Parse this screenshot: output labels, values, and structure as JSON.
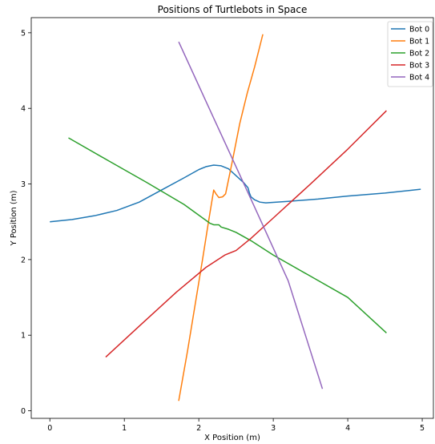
{
  "chart_data": {
    "type": "line",
    "title": "Positions of Turtlebots in Space",
    "xlabel": "X Position (m)",
    "ylabel": "Y Position (m)",
    "xlim": [
      -0.25,
      5.15
    ],
    "ylim": [
      -0.1,
      5.2
    ],
    "xticks": [
      0,
      1,
      2,
      3,
      4,
      5
    ],
    "yticks": [
      0,
      1,
      2,
      3,
      4,
      5
    ],
    "grid": false,
    "legend_position": "top-right",
    "series": [
      {
        "name": "Bot 0",
        "color": "#1f77b4",
        "points": [
          [
            0.0,
            2.5
          ],
          [
            0.3,
            2.53
          ],
          [
            0.6,
            2.58
          ],
          [
            0.9,
            2.65
          ],
          [
            1.2,
            2.76
          ],
          [
            1.5,
            2.92
          ],
          [
            1.8,
            3.08
          ],
          [
            2.0,
            3.19
          ],
          [
            2.1,
            3.23
          ],
          [
            2.2,
            3.25
          ],
          [
            2.3,
            3.24
          ],
          [
            2.4,
            3.2
          ],
          [
            2.5,
            3.11
          ],
          [
            2.6,
            3.02
          ],
          [
            2.66,
            2.95
          ],
          [
            2.68,
            2.88
          ],
          [
            2.7,
            2.83
          ],
          [
            2.75,
            2.79
          ],
          [
            2.82,
            2.76
          ],
          [
            2.9,
            2.75
          ],
          [
            3.2,
            2.77
          ],
          [
            3.6,
            2.8
          ],
          [
            4.0,
            2.84
          ],
          [
            4.5,
            2.88
          ],
          [
            4.98,
            2.93
          ]
        ]
      },
      {
        "name": "Bot 1",
        "color": "#ff7f0e",
        "points": [
          [
            1.73,
            0.13
          ],
          [
            1.85,
            0.8
          ],
          [
            1.95,
            1.4
          ],
          [
            2.05,
            2.0
          ],
          [
            2.13,
            2.5
          ],
          [
            2.2,
            2.92
          ],
          [
            2.23,
            2.87
          ],
          [
            2.27,
            2.82
          ],
          [
            2.32,
            2.83
          ],
          [
            2.36,
            2.87
          ],
          [
            2.45,
            3.3
          ],
          [
            2.55,
            3.8
          ],
          [
            2.65,
            4.2
          ],
          [
            2.75,
            4.55
          ],
          [
            2.86,
            4.98
          ]
        ]
      },
      {
        "name": "Bot 2",
        "color": "#2ca02c",
        "points": [
          [
            0.25,
            3.61
          ],
          [
            0.8,
            3.3
          ],
          [
            1.3,
            3.02
          ],
          [
            1.8,
            2.73
          ],
          [
            2.15,
            2.48
          ],
          [
            2.2,
            2.46
          ],
          [
            2.27,
            2.46
          ],
          [
            2.3,
            2.43
          ],
          [
            2.4,
            2.4
          ],
          [
            2.5,
            2.36
          ],
          [
            2.7,
            2.25
          ],
          [
            3.0,
            2.06
          ],
          [
            3.5,
            1.78
          ],
          [
            4.0,
            1.5
          ],
          [
            4.52,
            1.03
          ]
        ]
      },
      {
        "name": "Bot 3",
        "color": "#d62728",
        "points": [
          [
            0.75,
            0.71
          ],
          [
            1.2,
            1.12
          ],
          [
            1.7,
            1.57
          ],
          [
            2.1,
            1.9
          ],
          [
            2.35,
            2.06
          ],
          [
            2.5,
            2.12
          ],
          [
            2.7,
            2.28
          ],
          [
            3.0,
            2.55
          ],
          [
            3.5,
            3.0
          ],
          [
            4.0,
            3.46
          ],
          [
            4.52,
            3.97
          ]
        ]
      },
      {
        "name": "Bot 4",
        "color": "#9467bd",
        "points": [
          [
            1.73,
            4.88
          ],
          [
            2.2,
            3.87
          ],
          [
            2.7,
            2.8
          ],
          [
            3.2,
            1.72
          ],
          [
            3.66,
            0.29
          ]
        ]
      }
    ]
  }
}
